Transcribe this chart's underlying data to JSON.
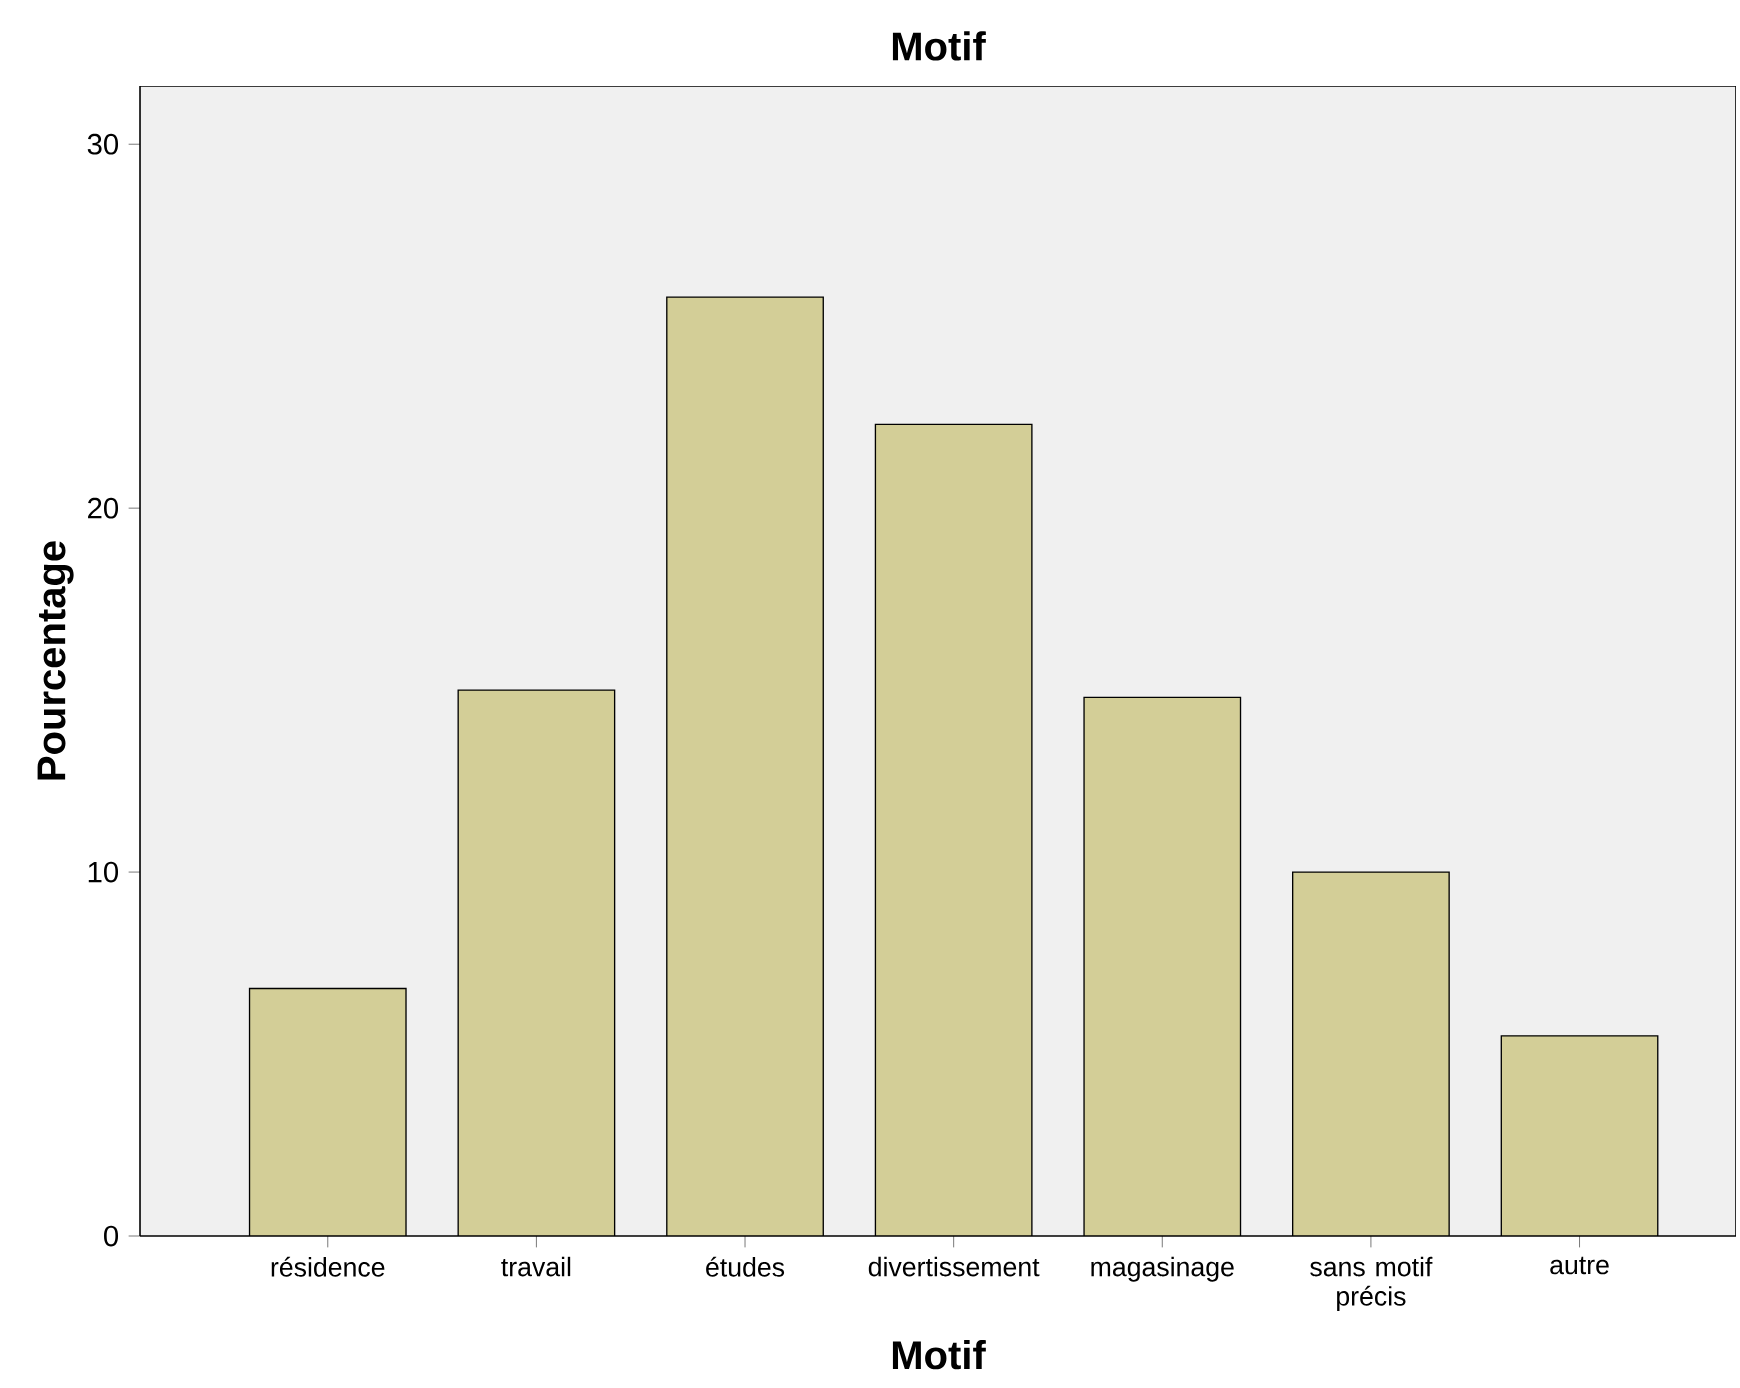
{
  "chart_data": {
    "type": "bar",
    "title": "Motif",
    "xlabel": "Motif",
    "ylabel": "Pourcentage",
    "categories": [
      "résidence",
      "travail",
      "études",
      "divertissement",
      "magasinage",
      "sans motif précis",
      "autre"
    ],
    "values": [
      6.8,
      15.0,
      25.8,
      22.3,
      14.8,
      10.0,
      5.5
    ],
    "color": "#d3ce97",
    "ylim": [
      0,
      31.6
    ],
    "yticks": [
      0,
      10,
      20,
      30
    ],
    "grid": false
  }
}
